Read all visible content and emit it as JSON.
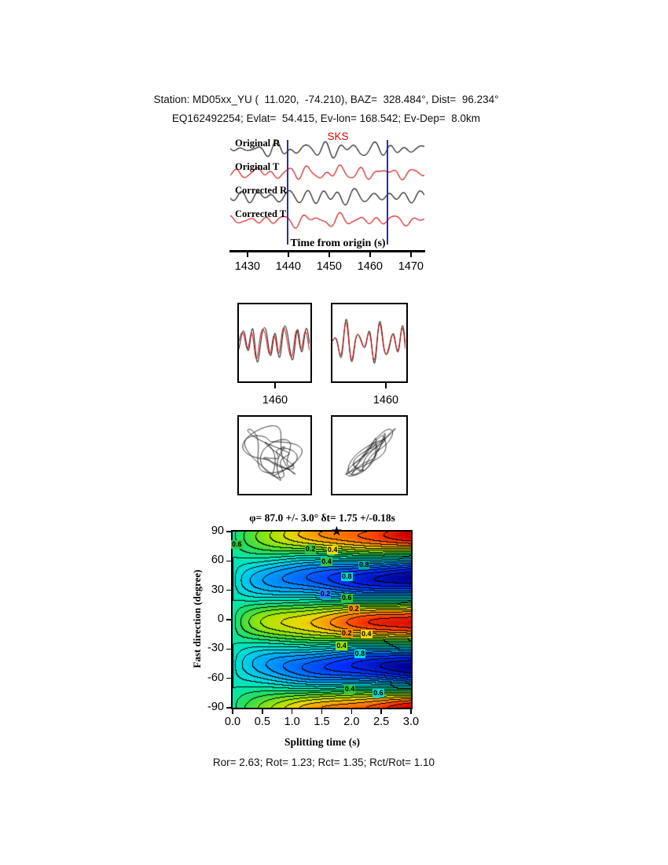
{
  "header": {
    "line1": "Station: MD05xx_YU (  11.020,  -74.210), BAZ=  328.484°, Dist=  96.234°",
    "line2": "EQ162492254; Evlat=  54.415, Ev-lon= 168.542; Ev-Dep=  8.0km"
  },
  "waveform_panel": {
    "phase_label": "SKS",
    "axis_label": "Time from origin (s)",
    "trace_labels": [
      "Original R",
      "Original T",
      "Corrected R",
      "Corrected T"
    ],
    "tick_labels": [
      "1430",
      "1440",
      "1450",
      "1460",
      "1470"
    ]
  },
  "window_panels": {
    "left_tick_label": "1460",
    "right_tick_label": "1460"
  },
  "contour_panel": {
    "title": "φ= 87.0 +/- 3.0° δt= 1.75 +/-0.18s",
    "xlabel": "Splitting time (s)",
    "ylabel": "Fast direction (degree)",
    "xtick_labels": [
      "0.0",
      "0.5",
      "1.0",
      "1.5",
      "2.0",
      "2.5",
      "3.0"
    ],
    "ytick_labels": [
      "90",
      "60",
      "30",
      "0",
      "-30",
      "-60",
      "-90"
    ]
  },
  "footer": {
    "results": "Ror= 2.63; Rot= 1.23; Rct= 1.35; Rct/Rot= 1.10"
  },
  "chart_data": [
    {
      "type": "line",
      "title": "Original and corrected radial/transverse seismograms",
      "xlabel": "Time from origin (s)",
      "xlim": [
        1425.8,
        1473.3
      ],
      "xticks": [
        1430,
        1440,
        1450,
        1460,
        1470
      ],
      "window_lines_t": [
        1439.8,
        1464.3
      ],
      "sks_label_t": 1451.5,
      "traces": [
        {
          "label": "Original R",
          "color": "#000000",
          "components": [
            [
              4.0,
              5.5,
              0.2
            ],
            [
              5.8,
              4.5,
              2.4
            ],
            [
              3.1,
              2.5,
              4.4
            ],
            [
              8.5,
              2.2,
              1.1
            ]
          ]
        },
        {
          "label": "Original T",
          "color": "#cc0000",
          "components": [
            [
              4.3,
              5.0,
              1.9
            ],
            [
              6.2,
              4.0,
              0.6
            ],
            [
              2.8,
              2.0,
              3.3
            ],
            [
              10.2,
              2.5,
              5.0
            ]
          ]
        },
        {
          "label": "Corrected R",
          "color": "#000000",
          "components": [
            [
              4.0,
              6.0,
              0.9
            ],
            [
              5.5,
              4.0,
              3.1
            ],
            [
              3.3,
              2.2,
              1.7
            ],
            [
              7.9,
              2.0,
              5.2
            ]
          ]
        },
        {
          "label": "Corrected T",
          "color": "#cc0000",
          "components": [
            [
              4.5,
              4.5,
              2.7
            ],
            [
              6.8,
              3.5,
              4.2
            ],
            [
              3.0,
              2.0,
              0.5
            ],
            [
              9.4,
              2.0,
              2.9
            ]
          ]
        }
      ]
    },
    {
      "type": "line",
      "title": "Windowed waveform comparison (black vs red)",
      "tick_label": "1460",
      "tspan": [
        1439.8,
        1464.3
      ],
      "panels": [
        {
          "black": [
            [
              3.8,
              16,
              0.5
            ],
            [
              6.5,
              9,
              2.0
            ],
            [
              2.6,
              5,
              4.1
            ]
          ],
          "red": [
            [
              3.8,
              13,
              1.1
            ],
            [
              6.5,
              8,
              2.6
            ],
            [
              2.6,
              4,
              4.7
            ]
          ]
        },
        {
          "black": [
            [
              3.8,
              17,
              0.8
            ],
            [
              5.9,
              8,
              3.0
            ],
            [
              2.7,
              5,
              1.6
            ]
          ],
          "red": [
            [
              3.8,
              15,
              0.95
            ],
            [
              5.9,
              7,
              3.15
            ],
            [
              2.7,
              4,
              1.75
            ]
          ]
        }
      ]
    },
    {
      "type": "scatter",
      "title": "Particle motion before (left) and after (right) correction",
      "panels": [
        {
          "rot_deg": 0,
          "tmax": 40,
          "x": [
            [
              1.0,
              20,
              0.0
            ],
            [
              2.35,
              9,
              1.3
            ],
            [
              0.47,
              12,
              3.1
            ]
          ],
          "y": [
            [
              1.0,
              18,
              2.0
            ],
            [
              1.72,
              10,
              0.4
            ],
            [
              0.53,
              11,
              4.5
            ]
          ]
        },
        {
          "rot_deg": 38,
          "tmax": 40,
          "x": [
            [
              1.0,
              30,
              0.2
            ],
            [
              1.9,
              8,
              2.4
            ],
            [
              0.5,
              9,
              4.1
            ]
          ],
          "y": [
            [
              1.0,
              8,
              1.1
            ],
            [
              2.2,
              4,
              3.5
            ]
          ]
        }
      ]
    },
    {
      "type": "heatmap",
      "title": "φ= 87.0 +/- 3.0° δt= 1.75 +/-0.18s",
      "xlabel": "Splitting time (s)",
      "ylabel": "Fast direction (degree)",
      "xlim": [
        0,
        3
      ],
      "ylim": [
        -90,
        90
      ],
      "xticks": [
        0.0,
        0.5,
        1.0,
        1.5,
        2.0,
        2.5,
        3.0
      ],
      "yticks": [
        90,
        60,
        30,
        0,
        -30,
        -60,
        -90
      ],
      "best_phi_deg": 87.0,
      "best_phi_err_deg": 3.0,
      "best_dt_s": 1.75,
      "best_dt_err_s": 0.18,
      "model": {
        "center_phi": 87,
        "harmonics": 4,
        "envelope_exp": 0.55,
        "contour_step": 0.1,
        "ripple_amp": 0.04,
        "ripple_kx": 3.5,
        "ripple_ky": 0.1
      },
      "colormap": [
        [
          -1,
          "#00008c"
        ],
        [
          -0.75,
          "#0030ff"
        ],
        [
          -0.45,
          "#0090ff"
        ],
        [
          -0.2,
          "#00d8e8"
        ],
        [
          0,
          "#00e8b0"
        ],
        [
          0.2,
          "#30dc50"
        ],
        [
          0.4,
          "#a0e800"
        ],
        [
          0.55,
          "#e8d800"
        ],
        [
          0.7,
          "#ff9000"
        ],
        [
          0.85,
          "#ff4000"
        ],
        [
          1,
          "#cc0000"
        ]
      ],
      "contour_labels": [
        {
          "text": "0.6",
          "dt": 0.08,
          "phi": 77,
          "bg": "#30c840"
        },
        {
          "text": "0.2",
          "dt": 1.32,
          "phi": 72,
          "bg": "#30c840"
        },
        {
          "text": "0.4",
          "dt": 1.69,
          "phi": 71,
          "bg": "#ffd800"
        },
        {
          "text": "0.4",
          "dt": 1.59,
          "phi": 59,
          "bg": "#30c840"
        },
        {
          "text": "0.8",
          "dt": 2.22,
          "phi": 56,
          "bg": "#00a8a8"
        },
        {
          "text": "0.8",
          "dt": 1.93,
          "phi": 44,
          "bg": "#00d8d8"
        },
        {
          "text": "0.2",
          "dt": 1.57,
          "phi": 26,
          "bg": "#3078ff"
        },
        {
          "text": "0.6",
          "dt": 1.93,
          "phi": 22,
          "bg": "#30c840"
        },
        {
          "text": "0.2",
          "dt": 2.05,
          "phi": 11,
          "bg": "#ff9000"
        },
        {
          "text": "0.2",
          "dt": 1.93,
          "phi": -14,
          "bg": "#ff9000"
        },
        {
          "text": "0.4",
          "dt": 2.26,
          "phi": -15,
          "bg": "#ffd800"
        },
        {
          "text": "0.4",
          "dt": 1.84,
          "phi": -27,
          "bg": "#98e000"
        },
        {
          "text": "0.8",
          "dt": 2.15,
          "phi": -35,
          "bg": "#00d8d8"
        },
        {
          "text": "0.4",
          "dt": 1.98,
          "phi": -71,
          "bg": "#30c840"
        },
        {
          "text": "0.6",
          "dt": 2.46,
          "phi": -75,
          "bg": "#00d8d8"
        }
      ]
    }
  ]
}
